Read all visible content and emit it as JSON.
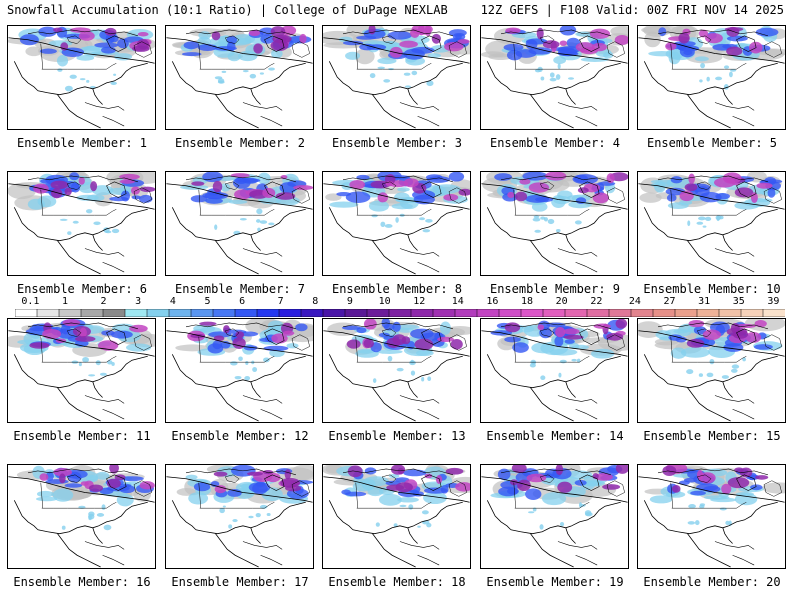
{
  "header": {
    "title_left": "Snowfall Accumulation (10:1 Ratio) | College of DuPage NEXLAB",
    "title_right": "12Z GEFS | F108 Valid: 00Z FRI NOV 14 2025"
  },
  "members": [
    "Ensemble Member: 1",
    "Ensemble Member: 2",
    "Ensemble Member: 3",
    "Ensemble Member: 4",
    "Ensemble Member: 5",
    "Ensemble Member: 6",
    "Ensemble Member: 7",
    "Ensemble Member: 8",
    "Ensemble Member: 9",
    "Ensemble Member: 10",
    "Ensemble Member: 11",
    "Ensemble Member: 12",
    "Ensemble Member: 13",
    "Ensemble Member: 14",
    "Ensemble Member: 15",
    "Ensemble Member: 16",
    "Ensemble Member: 17",
    "Ensemble Member: 18",
    "Ensemble Member: 19",
    "Ensemble Member: 20"
  ],
  "colorbar": {
    "ticks": [
      "0.1",
      "1",
      "2",
      "3",
      "4",
      "5",
      "6",
      "7",
      "8",
      "9",
      "10",
      "12",
      "14",
      "16",
      "18",
      "20",
      "22",
      "24",
      "27",
      "31",
      "35",
      "39"
    ],
    "colors": [
      "#ffffff",
      "#e6e6e6",
      "#c8c8c8",
      "#a8a8a8",
      "#8a8a8a",
      "#9fe8f2",
      "#84d0ee",
      "#6fb4ee",
      "#5a96f0",
      "#4878f4",
      "#3458f4",
      "#2438f0",
      "#2a1ee0",
      "#3a18c0",
      "#4a16a8",
      "#5a1896",
      "#6c1c9a",
      "#7e22a2",
      "#8e28aa",
      "#a030b2",
      "#b23cbc",
      "#c244c2",
      "#d04ec8",
      "#dc56c8",
      "#e15ebe",
      "#e266b0",
      "#e06ea2",
      "#e07898",
      "#e2848e",
      "#e69088",
      "#eaa08c",
      "#eeb298",
      "#f2c2a8",
      "#f6d2ba",
      "#fae2cc"
    ]
  }
}
